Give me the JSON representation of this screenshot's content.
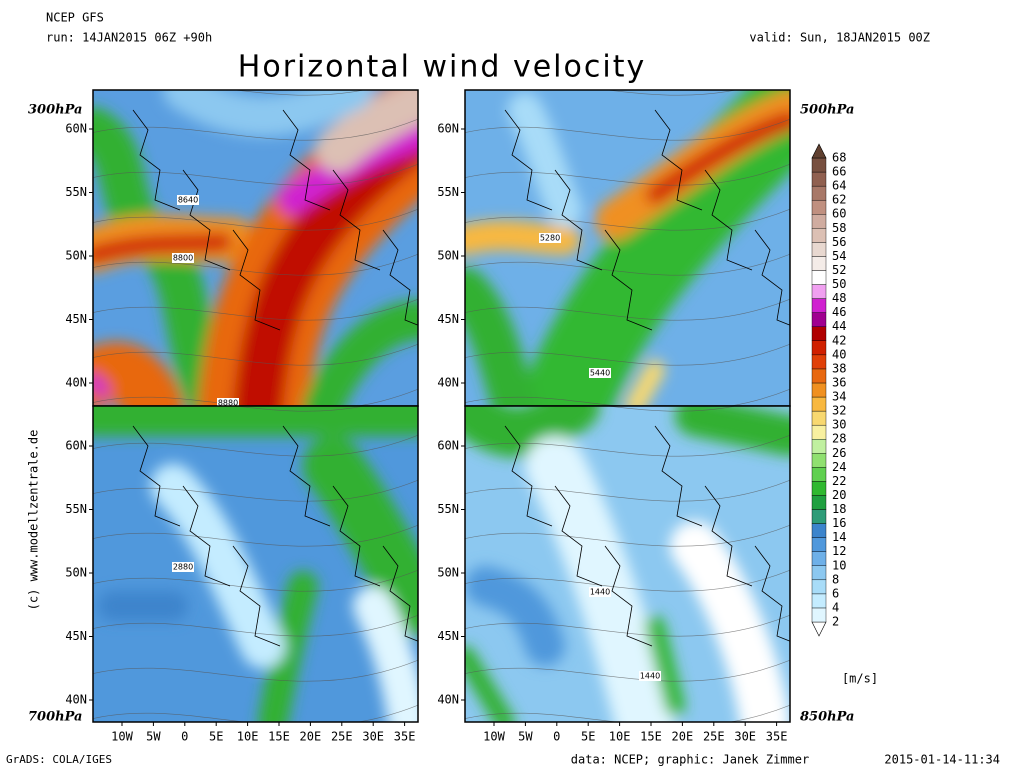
{
  "header": {
    "model": "NCEP GFS",
    "run": "run: 14JAN2015 06Z +90h",
    "valid": "valid: Sun, 18JAN2015 00Z",
    "title": "Horizontal wind velocity"
  },
  "panels": [
    {
      "level": "300hPa",
      "contour_labels": [
        "8640",
        "8800",
        "8880"
      ]
    },
    {
      "level": "500hPa",
      "contour_labels": [
        "5280",
        "5440"
      ]
    },
    {
      "level": "700hPa",
      "contour_labels": [
        "2880"
      ]
    },
    {
      "level": "850hPa",
      "contour_labels": [
        "1440",
        "1440"
      ]
    }
  ],
  "lat_labels": [
    "60N",
    "55N",
    "50N",
    "45N",
    "40N"
  ],
  "lon_labels": [
    "10W",
    "5W",
    "0",
    "5E",
    "10E",
    "15E",
    "20E",
    "25E",
    "30E",
    "35E"
  ],
  "colorbar": {
    "unit": "[m/s]",
    "levels": [
      "2",
      "4",
      "6",
      "8",
      "10",
      "12",
      "14",
      "16",
      "18",
      "20",
      "22",
      "24",
      "26",
      "28",
      "30",
      "32",
      "34",
      "36",
      "38",
      "40",
      "42",
      "44",
      "46",
      "48",
      "50",
      "52",
      "54",
      "56",
      "58",
      "60",
      "62",
      "64",
      "66",
      "68"
    ],
    "colors": [
      "#ffffff",
      "#e0f6ff",
      "#c4ecff",
      "#a8dcf8",
      "#8cc8f0",
      "#6eb0e8",
      "#5098dc",
      "#3c84cc",
      "#2e9c78",
      "#20a040",
      "#30b830",
      "#60d050",
      "#90e070",
      "#c0f0a0",
      "#f8f0a0",
      "#f8d870",
      "#f8b840",
      "#f09020",
      "#e86810",
      "#e04008",
      "#d02000",
      "#b00000",
      "#a00090",
      "#d020d0",
      "#f0a0f0",
      "#ffffff",
      "#f4ece8",
      "#e8d8d0",
      "#dcc0b4",
      "#d0aca0",
      "#c09080",
      "#a87868",
      "#906050",
      "#785040",
      "#604030"
    ]
  },
  "credit": "(c) www.modellzentrale.de",
  "footer": {
    "left": "GrADS: COLA/IGES",
    "center": "data: NCEP; graphic: Janek Zimmer",
    "right": "2015-01-14-11:34"
  }
}
